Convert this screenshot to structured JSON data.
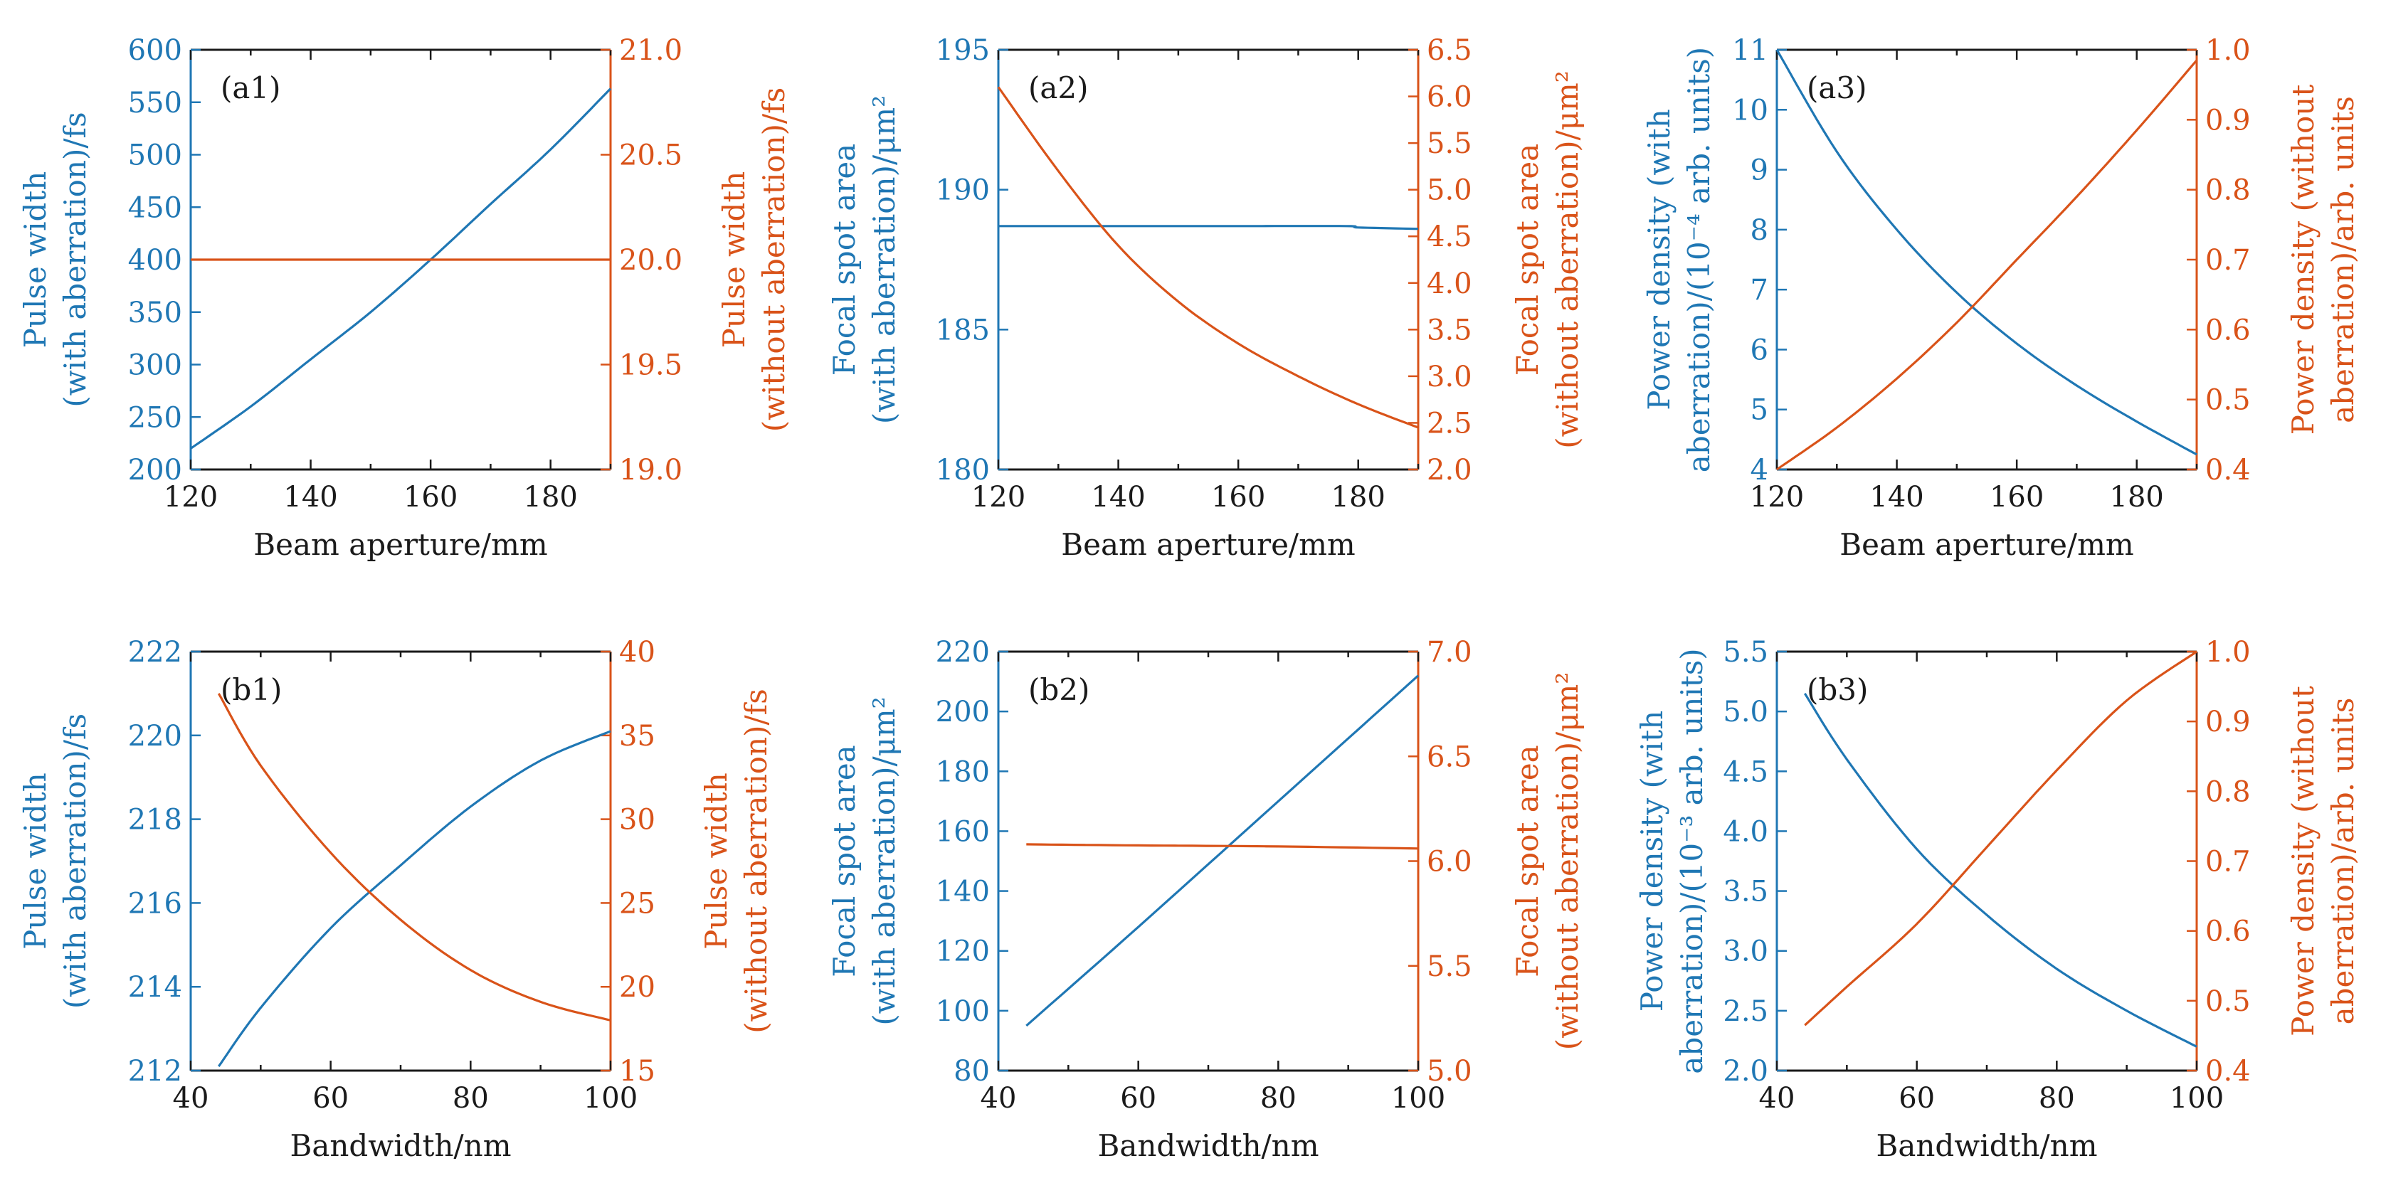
{
  "figure": {
    "colors": {
      "with_aberration": "#1f77b4",
      "without_aberration": "#d95319",
      "frame": "#1a1a1a"
    }
  },
  "chart_data": [
    {
      "id": "a1",
      "type": "line",
      "panel_label": "(a1)",
      "xlabel": "Beam aperture/mm",
      "xlim": [
        120,
        190
      ],
      "xticks": [
        120,
        140,
        160,
        180
      ],
      "left_axis": {
        "label_lines": [
          "Pulse width",
          "(with aberration)/fs"
        ],
        "ylim": [
          200,
          600
        ],
        "ticks": [
          200,
          250,
          300,
          350,
          400,
          450,
          500,
          550,
          600
        ]
      },
      "right_axis": {
        "label_lines": [
          "Pulse width",
          "(without aberration)/fs"
        ],
        "ylim": [
          19,
          21
        ],
        "ticks": [
          "19.0",
          "19.5",
          "20.0",
          "20.5",
          "21.0"
        ]
      },
      "series": [
        {
          "axis": "left",
          "color": "#1f77b4",
          "x": [
            120,
            130,
            140,
            150,
            160,
            170,
            180,
            190
          ],
          "y": [
            220,
            260,
            305,
            350,
            400,
            453,
            505,
            563
          ]
        },
        {
          "axis": "right",
          "color": "#d95319",
          "x": [
            120,
            190
          ],
          "y": [
            20.0,
            20.0
          ]
        }
      ]
    },
    {
      "id": "a2",
      "type": "line",
      "panel_label": "(a2)",
      "xlabel": "Beam aperture/mm",
      "xlim": [
        120,
        190
      ],
      "xticks": [
        120,
        140,
        160,
        180
      ],
      "left_axis": {
        "label_lines": [
          "Focal spot area",
          "(with aberration)/μm²"
        ],
        "ylim": [
          180,
          195
        ],
        "ticks": [
          180,
          185,
          190,
          195
        ]
      },
      "right_axis": {
        "label_lines": [
          "Focal spot area",
          "(without aberration)/μm²"
        ],
        "ylim": [
          2,
          6.5
        ],
        "ticks": [
          "2.0",
          "2.5",
          "3.0",
          "3.5",
          "4.0",
          "4.5",
          "5.0",
          "5.5",
          "6.0",
          "6.5"
        ]
      },
      "series": [
        {
          "axis": "left",
          "color": "#1f77b4",
          "x": [
            120,
            140,
            160,
            178,
            180,
            190
          ],
          "y": [
            188.7,
            188.7,
            188.7,
            188.7,
            188.65,
            188.6
          ]
        },
        {
          "axis": "right",
          "color": "#d95319",
          "x": [
            120,
            130,
            140,
            150,
            160,
            170,
            180,
            190
          ],
          "y": [
            6.1,
            5.2,
            4.4,
            3.8,
            3.35,
            3.0,
            2.7,
            2.45
          ]
        }
      ]
    },
    {
      "id": "a3",
      "type": "line",
      "panel_label": "(a3)",
      "xlabel": "Beam aperture/mm",
      "xlim": [
        120,
        190
      ],
      "xticks": [
        120,
        140,
        160,
        180
      ],
      "left_axis": {
        "label_lines": [
          "Power density (with",
          "aberration)/(10⁻⁴ arb. units)"
        ],
        "ylim": [
          4,
          11
        ],
        "ticks": [
          4,
          5,
          6,
          7,
          8,
          9,
          10,
          11
        ]
      },
      "right_axis": {
        "label_lines": [
          "Power density (without",
          "aberration)/arb. units"
        ],
        "ylim": [
          0.4,
          1.0
        ],
        "ticks": [
          "0.4",
          "0.5",
          "0.6",
          "0.7",
          "0.8",
          "0.9",
          "1.0"
        ]
      },
      "series": [
        {
          "axis": "left",
          "color": "#1f77b4",
          "x": [
            120,
            130,
            140,
            150,
            160,
            170,
            180,
            190
          ],
          "y": [
            11.0,
            9.3,
            8.0,
            6.95,
            6.1,
            5.4,
            4.8,
            4.25
          ]
        },
        {
          "axis": "right",
          "color": "#d95319",
          "x": [
            120,
            130,
            140,
            150,
            160,
            170,
            180,
            190
          ],
          "y": [
            0.4,
            0.46,
            0.53,
            0.61,
            0.7,
            0.79,
            0.885,
            0.985
          ]
        }
      ]
    },
    {
      "id": "b1",
      "type": "line",
      "panel_label": "(b1)",
      "xlabel": "Bandwidth/nm",
      "xlim": [
        40,
        100
      ],
      "xticks": [
        40,
        60,
        80,
        100
      ],
      "left_axis": {
        "label_lines": [
          "Pulse width",
          "(with aberration)/fs"
        ],
        "ylim": [
          212,
          222
        ],
        "ticks": [
          212,
          214,
          216,
          218,
          220,
          222
        ]
      },
      "right_axis": {
        "label_lines": [
          "Pulse width",
          "(without aberration)/fs"
        ],
        "ylim": [
          15,
          40
        ],
        "ticks": [
          15,
          20,
          25,
          30,
          35,
          40
        ]
      },
      "series": [
        {
          "axis": "left",
          "color": "#1f77b4",
          "x": [
            44,
            50,
            60,
            70,
            80,
            90,
            100
          ],
          "y": [
            212.1,
            213.5,
            215.4,
            216.9,
            218.3,
            219.4,
            220.1
          ]
        },
        {
          "axis": "right",
          "color": "#d95319",
          "x": [
            44,
            50,
            60,
            70,
            80,
            90,
            100
          ],
          "y": [
            37.5,
            33.2,
            28.0,
            24.0,
            21.0,
            19.1,
            18.0
          ]
        }
      ]
    },
    {
      "id": "b2",
      "type": "line",
      "panel_label": "(b2)",
      "xlabel": "Bandwidth/nm",
      "xlim": [
        40,
        100
      ],
      "xticks": [
        40,
        60,
        80,
        100
      ],
      "left_axis": {
        "label_lines": [
          "Focal spot area",
          "(with aberration)/μm²"
        ],
        "ylim": [
          80,
          220
        ],
        "ticks": [
          80,
          100,
          120,
          140,
          160,
          180,
          200,
          220
        ]
      },
      "right_axis": {
        "label_lines": [
          "Focal spot area",
          "(without aberration)/μm²"
        ],
        "ylim": [
          5,
          7
        ],
        "ticks": [
          "5.0",
          "5.5",
          "6.0",
          "6.5",
          "7.0"
        ]
      },
      "series": [
        {
          "axis": "left",
          "color": "#1f77b4",
          "x": [
            44,
            60,
            80,
            100
          ],
          "y": [
            95,
            128,
            170,
            212
          ]
        },
        {
          "axis": "right",
          "color": "#d95319",
          "x": [
            44,
            60,
            80,
            100
          ],
          "y": [
            6.08,
            6.075,
            6.07,
            6.06
          ]
        }
      ]
    },
    {
      "id": "b3",
      "type": "line",
      "panel_label": "(b3)",
      "xlabel": "Bandwidth/nm",
      "xlim": [
        40,
        100
      ],
      "xticks": [
        40,
        60,
        80,
        100
      ],
      "left_axis": {
        "label_lines": [
          "Power density (with",
          "aberration)/(10⁻³ arb. units)"
        ],
        "ylim": [
          2,
          5.5
        ],
        "ticks": [
          "2.0",
          "2.5",
          "3.0",
          "3.5",
          "4.0",
          "4.5",
          "5.0",
          "5.5"
        ]
      },
      "right_axis": {
        "label_lines": [
          "Power density (without",
          "aberration)/arb. units"
        ],
        "ylim": [
          0.4,
          1.0
        ],
        "ticks": [
          "0.4",
          "0.5",
          "0.6",
          "0.7",
          "0.8",
          "0.9",
          "1.0"
        ]
      },
      "series": [
        {
          "axis": "left",
          "color": "#1f77b4",
          "x": [
            44,
            50,
            60,
            70,
            80,
            90,
            100
          ],
          "y": [
            5.15,
            4.6,
            3.85,
            3.3,
            2.85,
            2.5,
            2.2
          ]
        },
        {
          "axis": "right",
          "color": "#d95319",
          "x": [
            44,
            50,
            60,
            70,
            80,
            90,
            100
          ],
          "y": [
            0.465,
            0.52,
            0.61,
            0.72,
            0.83,
            0.93,
            1.0
          ]
        }
      ]
    }
  ]
}
